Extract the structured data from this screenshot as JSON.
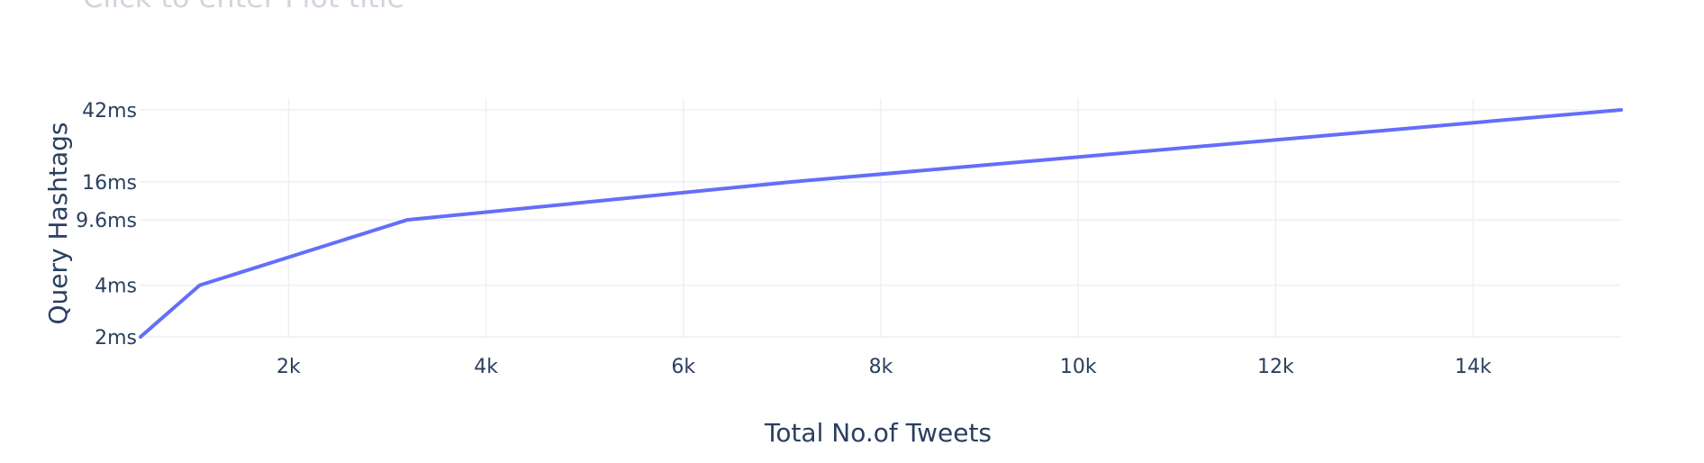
{
  "chart_data": {
    "type": "line",
    "title": "Click to enter Plot title",
    "xlabel": "Total No.of Tweets",
    "ylabel": "Query Hashtags",
    "x_scale": "linear",
    "y_scale": "log",
    "xlim": [
      500,
      15500
    ],
    "ylim": [
      2,
      42
    ],
    "x_ticks": [
      {
        "value": 2000,
        "label": "2k"
      },
      {
        "value": 4000,
        "label": "4k"
      },
      {
        "value": 6000,
        "label": "6k"
      },
      {
        "value": 8000,
        "label": "8k"
      },
      {
        "value": 10000,
        "label": "10k"
      },
      {
        "value": 12000,
        "label": "12k"
      },
      {
        "value": 14000,
        "label": "14k"
      }
    ],
    "y_ticks": [
      {
        "value": 2,
        "label": "2ms"
      },
      {
        "value": 4,
        "label": "4ms"
      },
      {
        "value": 9.6,
        "label": "9.6ms"
      },
      {
        "value": 16,
        "label": "16ms"
      },
      {
        "value": 42,
        "label": "42ms"
      }
    ],
    "grid": true,
    "color": "#636efa",
    "series": [
      {
        "x": [
          500,
          1100,
          3200,
          7100,
          15500
        ],
        "y": [
          2,
          4,
          9.6,
          16,
          42
        ]
      }
    ]
  }
}
